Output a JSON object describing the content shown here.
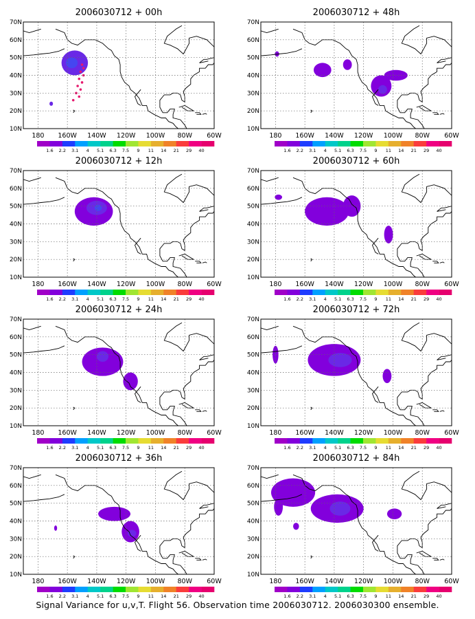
{
  "panels": [
    {
      "title": "2006030712 + 00h",
      "blobs": [
        {
          "lon": -155,
          "lat": 47,
          "rlon": 9,
          "rlat": 7,
          "level": 4
        },
        {
          "lon": -157,
          "lat": 47,
          "rlon": 4,
          "rlat": 3,
          "level": 5
        },
        {
          "lon": -171,
          "lat": 24,
          "rlon": 1.2,
          "rlat": 1.2,
          "level": 4
        }
      ],
      "dots": [
        [
          -150,
          46
        ],
        [
          -151,
          42
        ],
        [
          -152,
          38
        ],
        [
          -153,
          34
        ],
        [
          -154,
          30
        ],
        [
          -156,
          26
        ],
        [
          -149,
          44
        ],
        [
          -149,
          40
        ],
        [
          -150,
          36
        ],
        [
          -151,
          32
        ],
        [
          -152,
          28
        ]
      ]
    },
    {
      "title": "2006030712 + 48h",
      "blobs": [
        {
          "lon": -148,
          "lat": 43,
          "rlon": 6,
          "rlat": 4,
          "level": 3
        },
        {
          "lon": -131,
          "lat": 46,
          "rlon": 3,
          "rlat": 3,
          "level": 3
        },
        {
          "lon": -108,
          "lat": 34,
          "rlon": 7,
          "rlat": 6,
          "level": 3
        },
        {
          "lon": -107,
          "lat": 32,
          "rlon": 3,
          "rlat": 2.5,
          "level": 4
        },
        {
          "lon": -98,
          "lat": 40,
          "rlon": 8,
          "rlat": 3,
          "level": 3
        },
        {
          "lon": -179,
          "lat": 52,
          "rlon": 1.5,
          "rlat": 1.5,
          "level": 3
        }
      ],
      "dots": []
    },
    {
      "title": "2006030712 + 12h",
      "blobs": [
        {
          "lon": -142,
          "lat": 47,
          "rlon": 13,
          "rlat": 8,
          "level": 3
        },
        {
          "lon": -140,
          "lat": 49,
          "rlon": 7,
          "rlat": 4,
          "level": 4
        },
        {
          "lon": -139,
          "lat": 49,
          "rlon": 2.5,
          "rlat": 1.8,
          "level": 5
        }
      ],
      "dots": []
    },
    {
      "title": "2006030712 + 60h",
      "blobs": [
        {
          "lon": -145,
          "lat": 47,
          "rlon": 15,
          "rlat": 8,
          "level": 3
        },
        {
          "lon": -128,
          "lat": 50,
          "rlon": 6,
          "rlat": 6,
          "level": 3
        },
        {
          "lon": -103,
          "lat": 34,
          "rlon": 3,
          "rlat": 5,
          "level": 3
        },
        {
          "lon": -178,
          "lat": 55,
          "rlon": 2.5,
          "rlat": 1.5,
          "level": 3
        }
      ],
      "dots": []
    },
    {
      "title": "2006030712 + 24h",
      "blobs": [
        {
          "lon": -136,
          "lat": 46,
          "rlon": 14,
          "rlat": 8,
          "level": 3
        },
        {
          "lon": -136,
          "lat": 49,
          "rlon": 4,
          "rlat": 3,
          "level": 4
        },
        {
          "lon": -117,
          "lat": 35,
          "rlon": 5,
          "rlat": 5,
          "level": 3
        }
      ],
      "dots": []
    },
    {
      "title": "2006030712 + 72h",
      "blobs": [
        {
          "lon": -140,
          "lat": 47,
          "rlon": 18,
          "rlat": 9,
          "level": 3
        },
        {
          "lon": -136,
          "lat": 47,
          "rlon": 8,
          "rlat": 4,
          "level": 4
        },
        {
          "lon": -104,
          "lat": 38,
          "rlon": 3,
          "rlat": 4,
          "level": 3
        },
        {
          "lon": -180,
          "lat": 50,
          "rlon": 2,
          "rlat": 5,
          "level": 3
        }
      ],
      "dots": []
    },
    {
      "title": "2006030712 + 36h",
      "blobs": [
        {
          "lon": -128,
          "lat": 44,
          "rlon": 11,
          "rlat": 4,
          "level": 3
        },
        {
          "lon": -117,
          "lat": 34,
          "rlon": 6,
          "rlat": 6,
          "level": 3
        },
        {
          "lon": -116,
          "lat": 33,
          "rlon": 3,
          "rlat": 2,
          "level": 4
        },
        {
          "lon": -168,
          "lat": 36,
          "rlon": 1,
          "rlat": 1.5,
          "level": 3
        }
      ],
      "dots": []
    },
    {
      "title": "2006030712 + 84h",
      "blobs": [
        {
          "lon": -168,
          "lat": 56,
          "rlon": 15,
          "rlat": 8,
          "level": 3
        },
        {
          "lon": -138,
          "lat": 47,
          "rlon": 18,
          "rlat": 8,
          "level": 3
        },
        {
          "lon": -136,
          "lat": 47,
          "rlon": 7,
          "rlat": 4,
          "level": 4
        },
        {
          "lon": -99,
          "lat": 44,
          "rlon": 5,
          "rlat": 3,
          "level": 3
        },
        {
          "lon": -178,
          "lat": 48,
          "rlon": 3,
          "rlat": 5,
          "level": 3
        },
        {
          "lon": -166,
          "lat": 37,
          "rlon": 2,
          "rlat": 2,
          "level": 3
        }
      ],
      "dots": []
    }
  ],
  "map": {
    "lon_ticks": [
      "180",
      "160W",
      "140W",
      "120W",
      "100W",
      "80W",
      "60W"
    ],
    "lat_ticks": [
      "10N",
      "20N",
      "30N",
      "40N",
      "50N",
      "60N",
      "70N"
    ]
  },
  "colorbar": {
    "labels": [
      "1.6",
      "2.2",
      "3.1",
      "4",
      "5.1",
      "6.3",
      "7.5",
      "9",
      "11",
      "14",
      "21",
      "29",
      "40"
    ],
    "colors": [
      "#a000c8",
      "#8200dc",
      "#1e3cff",
      "#00a0ff",
      "#00c8c8",
      "#00d28c",
      "#00dc00",
      "#a0e632",
      "#e6dc32",
      "#e6af2d",
      "#f08228",
      "#fa3c3c",
      "#f00082"
    ]
  },
  "caption": "Signal Variance for u,v,T. Flight 56. Observation time 2006030712. 2006030300 ensemble."
}
